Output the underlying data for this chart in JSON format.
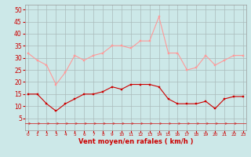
{
  "hours": [
    0,
    1,
    2,
    3,
    4,
    5,
    6,
    7,
    8,
    9,
    10,
    11,
    12,
    13,
    14,
    15,
    16,
    17,
    18,
    19,
    20,
    21,
    22,
    23
  ],
  "wind_avg": [
    15,
    15,
    11,
    8,
    11,
    13,
    15,
    15,
    16,
    18,
    17,
    19,
    19,
    19,
    18,
    13,
    11,
    11,
    11,
    12,
    9,
    13,
    14,
    14
  ],
  "wind_gust": [
    32,
    29,
    27,
    19,
    24,
    31,
    29,
    31,
    32,
    35,
    35,
    34,
    37,
    37,
    47,
    32,
    32,
    25,
    26,
    31,
    27,
    29,
    31,
    31
  ],
  "bg_color": "#cce8e8",
  "grid_color": "#aabbbb",
  "line_avg_color": "#cc0000",
  "line_gust_color": "#ff9999",
  "xlabel": "Vent moyen/en rafales ( km/h )",
  "xlabel_color": "#cc0000",
  "tick_color": "#cc0000",
  "ylim": [
    0,
    52
  ],
  "yticks": [
    5,
    10,
    15,
    20,
    25,
    30,
    35,
    40,
    45,
    50
  ],
  "arrow_color": "#cc3333"
}
